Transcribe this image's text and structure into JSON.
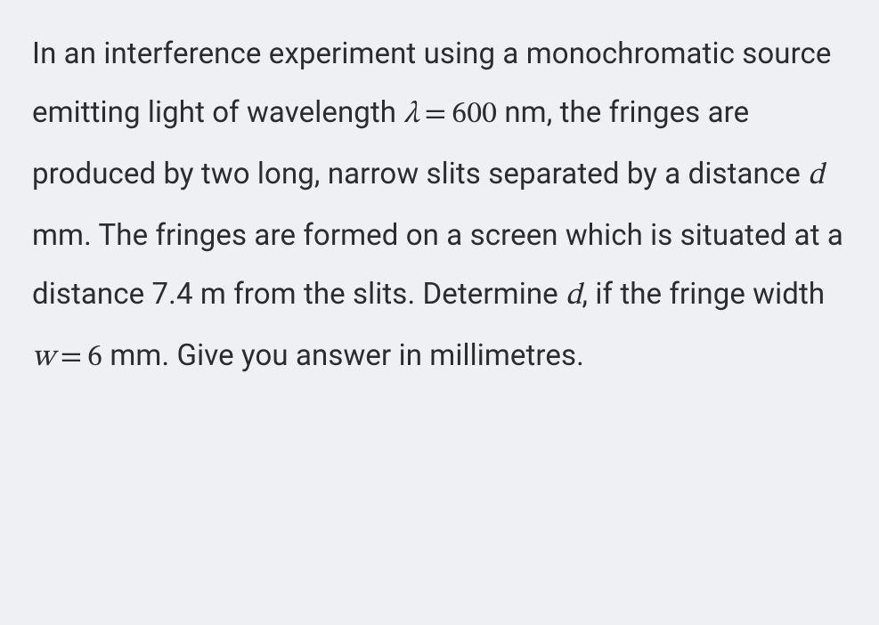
{
  "problem": {
    "textParts": {
      "p1": "In an interference experiment using a monochromatic source emitting light of wavelength ",
      "lambda": "λ",
      "eq1": "=",
      "val1": "600",
      "p2": " nm, the fringes are produced by two long, narrow slits separated by a distance ",
      "d1": "d",
      "p3": " mm. The fringes are formed on a screen which is situated at a distance 7.4 m from the slits. Determine ",
      "d2": "d",
      "p4": ", if the fringe width ",
      "w": "w",
      "eq2": "=",
      "val2": "6",
      "p5": " mm. Give you answer in millimetres."
    }
  },
  "style": {
    "background_color": "#eef0f4",
    "text_color": "#2a2c30",
    "font_size_pt": 25,
    "line_height": 2.0,
    "math_font": "Cambria Math",
    "body_font": "Segoe UI"
  }
}
